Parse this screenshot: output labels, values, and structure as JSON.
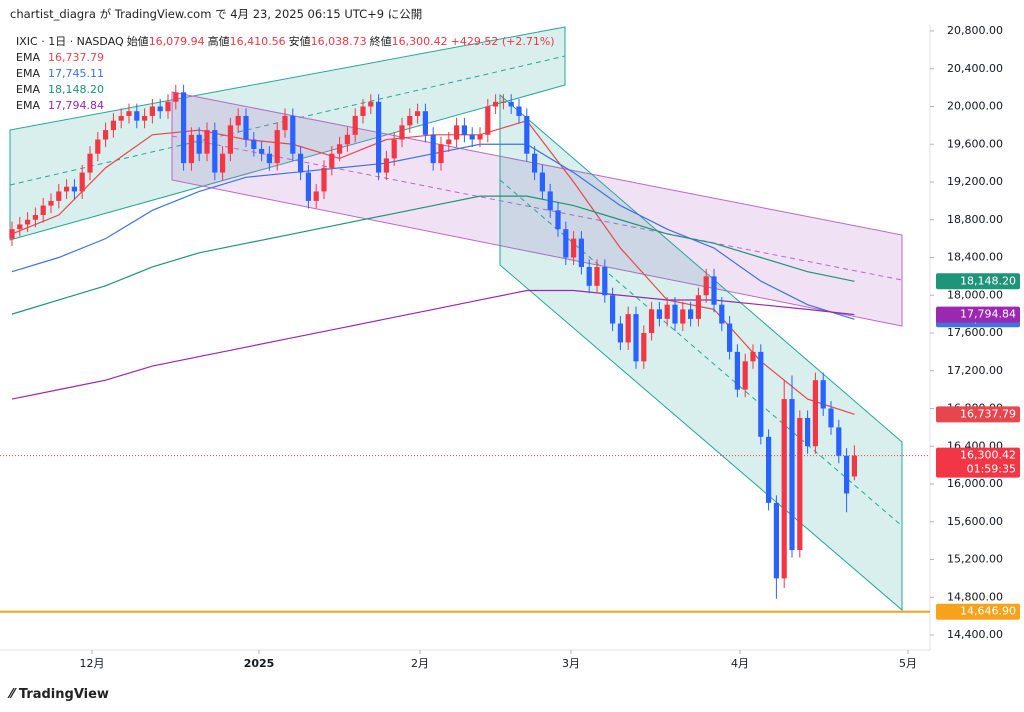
{
  "chart_data": {
    "type": "candlestick",
    "header": "chartist_diagra が TradingView.com で 4月 23, 2025 06:15 UTC+9 に公開",
    "symbol": "IXIC · 1日 · NASDAQ",
    "ohlc_legend": [
      {
        "name": "始値",
        "value": 16079.94,
        "label": "16,079.94"
      },
      {
        "name": "高値",
        "value": 16410.56,
        "label": "16,410.56"
      },
      {
        "name": "安値",
        "value": 16038.73,
        "label": "16,038.73"
      },
      {
        "name": "終値",
        "value": 16300.42,
        "label": "16,300.42"
      }
    ],
    "change": "+429.52 (+2.71%)",
    "up_color": "#f23645",
    "down_color": "#2962ff",
    "candles": [
      [
        18600,
        18780,
        18520,
        18700
      ],
      [
        18700,
        18830,
        18620,
        18750
      ],
      [
        18750,
        18880,
        18670,
        18800
      ],
      [
        18800,
        18930,
        18720,
        18850
      ],
      [
        18850,
        19030,
        18770,
        18950
      ],
      [
        18950,
        19080,
        18870,
        19000
      ],
      [
        19000,
        19180,
        18920,
        19100
      ],
      [
        19100,
        19230,
        19020,
        19150
      ],
      [
        19150,
        19230,
        19020,
        19100
      ],
      [
        19100,
        19380,
        19020,
        19300
      ],
      [
        19300,
        19580,
        19220,
        19500
      ],
      [
        19500,
        19730,
        19420,
        19650
      ],
      [
        19650,
        19830,
        19570,
        19750
      ],
      [
        19750,
        19930,
        19670,
        19850
      ],
      [
        19850,
        19980,
        19770,
        19900
      ],
      [
        19900,
        20030,
        19820,
        19950
      ],
      [
        19950,
        20030,
        19770,
        19850
      ],
      [
        19850,
        19980,
        19770,
        19900
      ],
      [
        19900,
        20080,
        19820,
        20000
      ],
      [
        20000,
        20080,
        19870,
        19950
      ],
      [
        19950,
        20130,
        19870,
        20050
      ],
      [
        20050,
        20230,
        19970,
        20150
      ],
      [
        20150,
        20230,
        19320,
        19400
      ],
      [
        19400,
        19780,
        19320,
        19700
      ],
      [
        19700,
        19780,
        19420,
        19500
      ],
      [
        19500,
        19830,
        19420,
        19750
      ],
      [
        19750,
        19830,
        19220,
        19300
      ],
      [
        19300,
        19580,
        19220,
        19500
      ],
      [
        19500,
        19880,
        19420,
        19800
      ],
      [
        19800,
        19980,
        19720,
        19900
      ],
      [
        19900,
        19980,
        19570,
        19650
      ],
      [
        19650,
        19730,
        19470,
        19550
      ],
      [
        19550,
        19630,
        19420,
        19500
      ],
      [
        19500,
        19580,
        19320,
        19400
      ],
      [
        19400,
        19830,
        19320,
        19750
      ],
      [
        19750,
        19980,
        19670,
        19900
      ],
      [
        19900,
        19980,
        19420,
        19500
      ],
      [
        19500,
        19580,
        19220,
        19300
      ],
      [
        19300,
        19380,
        18920,
        19000
      ],
      [
        19000,
        19180,
        18920,
        19100
      ],
      [
        19100,
        19430,
        19020,
        19350
      ],
      [
        19350,
        19580,
        19270,
        19500
      ],
      [
        19500,
        19680,
        19420,
        19600
      ],
      [
        19600,
        19780,
        19520,
        19700
      ],
      [
        19700,
        19980,
        19620,
        19900
      ],
      [
        19900,
        20080,
        19820,
        20000
      ],
      [
        20000,
        20130,
        19920,
        20050
      ],
      [
        20050,
        20130,
        19220,
        19300
      ],
      [
        19300,
        19530,
        19220,
        19450
      ],
      [
        19450,
        19730,
        19370,
        19650
      ],
      [
        19650,
        19880,
        19570,
        19800
      ],
      [
        19800,
        19980,
        19720,
        19900
      ],
      [
        19900,
        20030,
        19820,
        19950
      ],
      [
        19950,
        20030,
        19620,
        19700
      ],
      [
        19700,
        19780,
        19320,
        19400
      ],
      [
        19400,
        19680,
        19320,
        19600
      ],
      [
        19600,
        19730,
        19520,
        19650
      ],
      [
        19650,
        19880,
        19570,
        19800
      ],
      [
        19800,
        19880,
        19620,
        19700
      ],
      [
        19700,
        19780,
        19570,
        19650
      ],
      [
        19650,
        19780,
        19570,
        19700
      ],
      [
        19700,
        20080,
        19620,
        20000
      ],
      [
        20000,
        20130,
        19920,
        20050
      ],
      [
        20050,
        20130,
        19970,
        20050
      ],
      [
        20050,
        20130,
        19920,
        20000
      ],
      [
        20000,
        20080,
        19820,
        19900
      ],
      [
        19900,
        19980,
        19420,
        19500
      ],
      [
        19500,
        19580,
        19220,
        19300
      ],
      [
        19300,
        19380,
        19020,
        19100
      ],
      [
        19100,
        19180,
        18820,
        18900
      ],
      [
        18900,
        18980,
        18620,
        18700
      ],
      [
        18700,
        18780,
        18320,
        18400
      ],
      [
        18400,
        18680,
        18320,
        18600
      ],
      [
        18600,
        18680,
        18220,
        18300
      ],
      [
        18300,
        18380,
        18020,
        18100
      ],
      [
        18100,
        18380,
        18020,
        18300
      ],
      [
        18300,
        18380,
        17920,
        18000
      ],
      [
        18000,
        18080,
        17620,
        17700
      ],
      [
        17700,
        17780,
        17420,
        17500
      ],
      [
        17500,
        17880,
        17420,
        17800
      ],
      [
        17800,
        17880,
        17220,
        17300
      ],
      [
        17300,
        17680,
        17220,
        17600
      ],
      [
        17600,
        17930,
        17520,
        17850
      ],
      [
        17850,
        17930,
        17670,
        17750
      ],
      [
        17750,
        17980,
        17670,
        17900
      ],
      [
        17900,
        17980,
        17620,
        17700
      ],
      [
        17700,
        17930,
        17620,
        17850
      ],
      [
        17850,
        17930,
        17670,
        17750
      ],
      [
        17750,
        18080,
        17670,
        18000
      ],
      [
        18000,
        18280,
        17920,
        18200
      ],
      [
        18200,
        18280,
        17820,
        17900
      ],
      [
        17900,
        17980,
        17620,
        17700
      ],
      [
        17700,
        17780,
        17320,
        17400
      ],
      [
        17400,
        17480,
        16920,
        17000
      ],
      [
        17000,
        17380,
        16920,
        17300
      ],
      [
        17300,
        17480,
        17220,
        17400
      ],
      [
        17400,
        17480,
        16420,
        16500
      ],
      [
        16500,
        16580,
        15720,
        15800
      ],
      [
        15800,
        15880,
        14784,
        15000
      ],
      [
        15000,
        17100,
        14900,
        16900
      ],
      [
        16900,
        17150,
        15220,
        15300
      ],
      [
        15300,
        16780,
        15220,
        16700
      ],
      [
        16700,
        16780,
        16320,
        16400
      ],
      [
        16400,
        17180,
        16320,
        17100
      ],
      [
        17100,
        17180,
        16720,
        16800
      ],
      [
        16800,
        16880,
        16520,
        16600
      ],
      [
        16600,
        16680,
        16220,
        16300
      ],
      [
        16300,
        16380,
        15700,
        15900
      ],
      [
        16079.94,
        16410.56,
        16038.73,
        16300.42
      ]
    ],
    "series": [
      {
        "name": "EMA",
        "color": "#e8464f",
        "value_label": "16,737.79",
        "last": 16737.79,
        "values": [
          18650,
          18850,
          19350,
          19700,
          19750,
          19650,
          19600,
          19450,
          19650,
          19700,
          19700,
          19850,
          19200,
          18500,
          17950,
          17850,
          17300,
          16900,
          16738
        ]
      },
      {
        "name": "EMA",
        "color": "#3d74e0",
        "value_label": "17,745.11",
        "last": 17745.11,
        "values": [
          18250,
          18400,
          18600,
          18900,
          19100,
          19250,
          19300,
          19350,
          19400,
          19500,
          19600,
          19600,
          19300,
          18950,
          18700,
          18500,
          18150,
          17900,
          17745
        ]
      },
      {
        "name": "EMA",
        "color": "#1e9478",
        "value_label": "18,148.20",
        "last": 18148.2,
        "values": [
          17800,
          17950,
          18100,
          18300,
          18450,
          18550,
          18650,
          18750,
          18850,
          18950,
          19050,
          19050,
          18950,
          18800,
          18650,
          18550,
          18400,
          18250,
          18148
        ]
      },
      {
        "name": "EMA",
        "color": "#9c27b0",
        "value_label": "17,794.84",
        "last": 17794.84,
        "values": [
          16900,
          17000,
          17100,
          17250,
          17350,
          17450,
          17550,
          17650,
          17750,
          17850,
          17950,
          18050,
          18050,
          18000,
          17950,
          17950,
          17900,
          17850,
          17795
        ]
      }
    ],
    "last_price": {
      "value": 16300.42,
      "label": "16,300.42",
      "countdown": "01:59:35"
    },
    "hline": {
      "value": 14646.9,
      "label": "14,646.90",
      "color": "#f7a21b"
    },
    "ylim": [
      14400,
      20800
    ],
    "yticks": [
      {
        "value": 20800,
        "label": "20,800.00"
      },
      {
        "value": 20400,
        "label": "20,400.00"
      },
      {
        "value": 20000,
        "label": "20,000.00"
      },
      {
        "value": 19600,
        "label": "19,600.00"
      },
      {
        "value": 19200,
        "label": "19,200.00"
      },
      {
        "value": 18800,
        "label": "18,800.00"
      },
      {
        "value": 18400,
        "label": "18,400.00"
      },
      {
        "value": 18000,
        "label": "18,000.00"
      },
      {
        "value": 17600,
        "label": "17,600.00"
      },
      {
        "value": 17200,
        "label": "17,200.00"
      },
      {
        "value": 16800,
        "label": "16,800.00"
      },
      {
        "value": 16400,
        "label": "16,400.00"
      },
      {
        "value": 16000,
        "label": "16,000.00"
      },
      {
        "value": 15600,
        "label": "15,600.00"
      },
      {
        "value": 15200,
        "label": "15,200.00"
      },
      {
        "value": 14800,
        "label": "14,800.00"
      },
      {
        "value": 14400,
        "label": "14,400.00"
      }
    ],
    "xticks": [
      "12月",
      "2025",
      "2月",
      "3月",
      "4月",
      "5月"
    ],
    "footer": "TradingView"
  }
}
